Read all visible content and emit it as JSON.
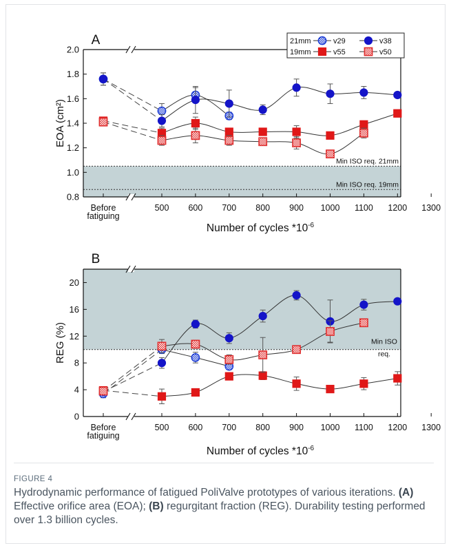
{
  "chart_data": [
    {
      "panel": "A",
      "type": "line",
      "ylabel": "EOA (cm²)",
      "xlabel": "Number of cycles *10",
      "xlabel_exp": "-6",
      "categories": [
        "Before fatiguing",
        "500",
        "600",
        "700",
        "800",
        "900",
        "1000",
        "1100",
        "1200",
        "1300"
      ],
      "xticks": [
        {
          "x": "Before fatiguing",
          "lines": [
            "Before",
            "fatiguing"
          ]
        },
        {
          "x": 500,
          "lines": [
            "500"
          ]
        },
        {
          "x": 600,
          "lines": [
            "600"
          ]
        },
        {
          "x": 700,
          "lines": [
            "700"
          ]
        },
        {
          "x": 800,
          "lines": [
            "800"
          ]
        },
        {
          "x": 900,
          "lines": [
            "900"
          ]
        },
        {
          "x": 1000,
          "lines": [
            "1000"
          ]
        },
        {
          "x": 1100,
          "lines": [
            "1100"
          ]
        },
        {
          "x": 1200,
          "lines": [
            "1200"
          ]
        },
        {
          "x": 1300,
          "lines": [
            "1300"
          ]
        }
      ],
      "ylim": [
        0.8,
        2.0
      ],
      "yticks": [
        "0.8",
        "1.0",
        "1.2",
        "1.4",
        "1.6",
        "1.8",
        "2.0"
      ],
      "axis_break": true,
      "legend": {
        "rows": [
          {
            "group": "21mm",
            "entries": [
              "v29",
              "v38"
            ]
          },
          {
            "group": "19mm",
            "entries": [
              "v55",
              "v50"
            ]
          }
        ]
      },
      "series": [
        {
          "name": "v29",
          "size": "21mm",
          "color": "#1f3fd6",
          "marker": "circle-checked",
          "points": [
            {
              "x": "Before fatiguing",
              "y": 1.76,
              "err": 0.05
            },
            {
              "x": 500,
              "y": 1.5,
              "err": 0.06
            },
            {
              "x": 600,
              "y": 1.63,
              "err": 0.06
            },
            {
              "x": 700,
              "y": 1.46,
              "err": 0.03
            }
          ]
        },
        {
          "name": "v38",
          "size": "21mm",
          "color": "#1414c8",
          "marker": "circle-filled",
          "points": [
            {
              "x": "Before fatiguing",
              "y": 1.76,
              "err": 0.05
            },
            {
              "x": 500,
              "y": 1.42,
              "err": 0.05
            },
            {
              "x": 600,
              "y": 1.59,
              "err": 0.11
            },
            {
              "x": 700,
              "y": 1.56,
              "err": 0.11
            },
            {
              "x": 800,
              "y": 1.51,
              "err": 0.04
            },
            {
              "x": 900,
              "y": 1.69,
              "err": 0.07
            },
            {
              "x": 1000,
              "y": 1.64,
              "err": 0.08
            },
            {
              "x": 1100,
              "y": 1.65,
              "err": 0.05
            },
            {
              "x": 1200,
              "y": 1.63,
              "err": 0.02
            }
          ]
        },
        {
          "name": "v55",
          "size": "19mm",
          "color": "#e01818",
          "marker": "square-filled",
          "points": [
            {
              "x": "Before fatiguing",
              "y": 1.42,
              "err": 0.03
            },
            {
              "x": 500,
              "y": 1.32,
              "err": 0.04
            },
            {
              "x": 600,
              "y": 1.4,
              "err": 0.05
            },
            {
              "x": 700,
              "y": 1.33,
              "err": 0.03
            },
            {
              "x": 800,
              "y": 1.33,
              "err": 0.03
            },
            {
              "x": 900,
              "y": 1.33,
              "err": 0.05
            },
            {
              "x": 1000,
              "y": 1.3,
              "err": 0.02
            },
            {
              "x": 1100,
              "y": 1.39,
              "err": 0.03
            },
            {
              "x": 1200,
              "y": 1.48,
              "err": 0.03
            }
          ]
        },
        {
          "name": "v50",
          "size": "19mm",
          "color": "#e03030",
          "marker": "square-checked",
          "points": [
            {
              "x": "Before fatiguing",
              "y": 1.41,
              "err": 0.03
            },
            {
              "x": 500,
              "y": 1.26,
              "err": 0.04
            },
            {
              "x": 600,
              "y": 1.3,
              "err": 0.06
            },
            {
              "x": 700,
              "y": 1.26,
              "err": 0.04
            },
            {
              "x": 800,
              "y": 1.25,
              "err": 0.03
            },
            {
              "x": 900,
              "y": 1.24,
              "err": 0.05
            },
            {
              "x": 1000,
              "y": 1.15,
              "err": 0.02
            },
            {
              "x": 1100,
              "y": 1.32,
              "err": 0.04
            }
          ]
        }
      ],
      "bands": [
        {
          "from": 0.8,
          "to": 1.05,
          "color": "#c4d3d6"
        }
      ],
      "reference_lines": [
        {
          "y": 1.05,
          "label": "Min ISO req. 21mm"
        },
        {
          "y": 0.86,
          "label": "Min ISO req. 19mm"
        }
      ]
    },
    {
      "panel": "B",
      "type": "line",
      "ylabel": "REG (%)",
      "xlabel": "Number of cycles *10",
      "xlabel_exp": "-6",
      "categories": [
        "Before fatiguing",
        "500",
        "600",
        "700",
        "800",
        "900",
        "1000",
        "1100",
        "1200",
        "1300"
      ],
      "xticks": [
        {
          "x": "Before fatiguing",
          "lines": [
            "Before",
            "fatiguing"
          ]
        },
        {
          "x": 500,
          "lines": [
            "500"
          ]
        },
        {
          "x": 600,
          "lines": [
            "600"
          ]
        },
        {
          "x": 700,
          "lines": [
            "700"
          ]
        },
        {
          "x": 800,
          "lines": [
            "800"
          ]
        },
        {
          "x": 900,
          "lines": [
            "900"
          ]
        },
        {
          "x": 1000,
          "lines": [
            "1000"
          ]
        },
        {
          "x": 1100,
          "lines": [
            "1100"
          ]
        },
        {
          "x": 1200,
          "lines": [
            "1200"
          ]
        },
        {
          "x": 1300,
          "lines": [
            "1300"
          ]
        }
      ],
      "ylim": [
        0,
        22
      ],
      "yticks": [
        "0",
        "4",
        "8",
        "12",
        "16",
        "20"
      ],
      "axis_break": true,
      "series": [
        {
          "name": "v29",
          "size": "21mm",
          "color": "#1f3fd6",
          "marker": "circle-checked",
          "points": [
            {
              "x": "Before fatiguing",
              "y": 3.4,
              "err": 0.6
            },
            {
              "x": 500,
              "y": 10.0,
              "err": 0.6
            },
            {
              "x": 600,
              "y": 8.8,
              "err": 0.8
            },
            {
              "x": 700,
              "y": 7.5,
              "err": 0.5
            }
          ]
        },
        {
          "name": "v38",
          "size": "21mm",
          "color": "#1414c8",
          "marker": "circle-filled",
          "points": [
            {
              "x": "Before fatiguing",
              "y": 3.7,
              "err": 0.5
            },
            {
              "x": 500,
              "y": 8.0,
              "err": 0.8
            },
            {
              "x": 600,
              "y": 13.8,
              "err": 0.6
            },
            {
              "x": 700,
              "y": 11.7,
              "err": 0.8
            },
            {
              "x": 800,
              "y": 15.0,
              "err": 0.9
            },
            {
              "x": 900,
              "y": 18.1,
              "err": 0.7
            },
            {
              "x": 1000,
              "y": 14.2,
              "err": 3.2
            },
            {
              "x": 1100,
              "y": 16.7,
              "err": 0.8
            },
            {
              "x": 1200,
              "y": 17.2,
              "err": 0.3
            }
          ]
        },
        {
          "name": "v55",
          "size": "19mm",
          "color": "#e01818",
          "marker": "square-filled",
          "points": [
            {
              "x": "Before fatiguing",
              "y": 3.9,
              "err": 0.5
            },
            {
              "x": 500,
              "y": 3.0,
              "err": 1.1
            },
            {
              "x": 600,
              "y": 3.6,
              "err": 0.4
            },
            {
              "x": 700,
              "y": 6.0,
              "err": 0.5
            },
            {
              "x": 800,
              "y": 6.1,
              "err": 0.6
            },
            {
              "x": 900,
              "y": 4.9,
              "err": 1.0
            },
            {
              "x": 1000,
              "y": 4.1,
              "err": 0.5
            },
            {
              "x": 1100,
              "y": 4.9,
              "err": 0.9
            },
            {
              "x": 1200,
              "y": 5.7,
              "err": 1.0
            }
          ]
        },
        {
          "name": "v50",
          "size": "19mm",
          "color": "#e03030",
          "marker": "square-checked",
          "points": [
            {
              "x": "Before fatiguing",
              "y": 3.8,
              "err": 0.5
            },
            {
              "x": 500,
              "y": 10.5,
              "err": 1.0
            },
            {
              "x": 600,
              "y": 10.8,
              "err": 0.6
            },
            {
              "x": 700,
              "y": 8.5,
              "err": 0.7
            },
            {
              "x": 800,
              "y": 9.2,
              "err": 2.6
            },
            {
              "x": 900,
              "y": 10.0,
              "err": 0.5
            },
            {
              "x": 1000,
              "y": 12.7,
              "err": 1.6
            },
            {
              "x": 1100,
              "y": 14.0,
              "err": 0.4
            }
          ]
        }
      ],
      "bands": [
        {
          "from": 10,
          "to": 22,
          "color": "#c4d3d6"
        }
      ],
      "reference_lines": [
        {
          "y": 10,
          "label": "Min ISO req.",
          "label_lines": [
            "Min ISO",
            "req."
          ]
        }
      ]
    }
  ],
  "caption": {
    "label": "FIGURE 4",
    "text_before": "Hydrodynamic performance of fatigued PoliValve prototypes of various iterations. ",
    "a_label": "(A)",
    "a_text": " Effective orifice area (EOA); ",
    "b_label": "(B)",
    "b_text": " regurgitant fraction (REG). Durability testing performed over 1.3 billion cycles."
  }
}
